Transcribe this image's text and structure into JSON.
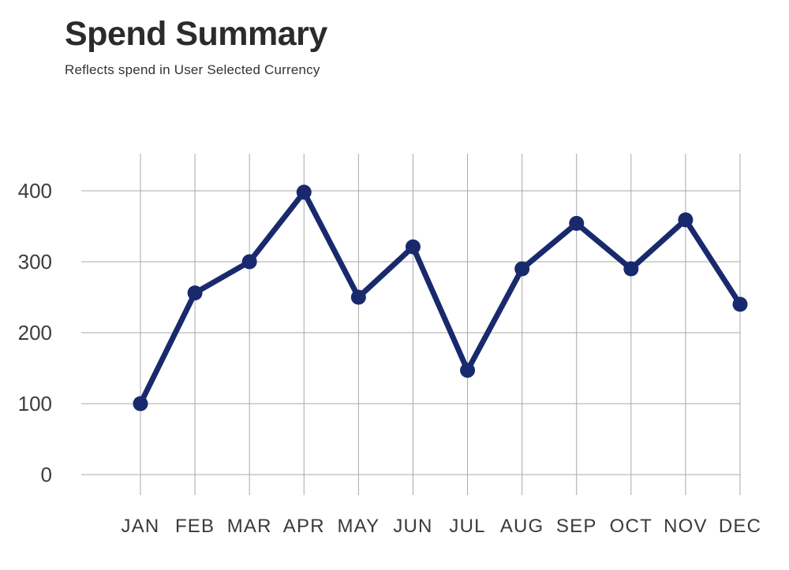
{
  "header": {
    "title": "Spend Summary",
    "subtitle": "Reflects spend in User Selected Currency"
  },
  "chart_data": {
    "type": "line",
    "title": "Spend Summary",
    "subtitle": "Reflects spend in User Selected Currency",
    "categories": [
      "JAN",
      "FEB",
      "MAR",
      "APR",
      "MAY",
      "JUN",
      "JUL",
      "AUG",
      "SEP",
      "OCT",
      "NOV",
      "DEC"
    ],
    "values": [
      100,
      256,
      300,
      398,
      250,
      321,
      147,
      290,
      354,
      290,
      359,
      240
    ],
    "yticks": [
      0,
      100,
      200,
      300,
      400
    ],
    "ylim": [
      0,
      450
    ],
    "xlabel": "",
    "ylabel": "",
    "grid": true,
    "legend": false,
    "colors": {
      "line": "#182a6d",
      "point": "#182a6d",
      "grid": "#a8a8a8",
      "axis_label": "#3d3d3d",
      "title": "#2b2b2b",
      "subtitle": "#333333",
      "background": "#ffffff"
    }
  }
}
